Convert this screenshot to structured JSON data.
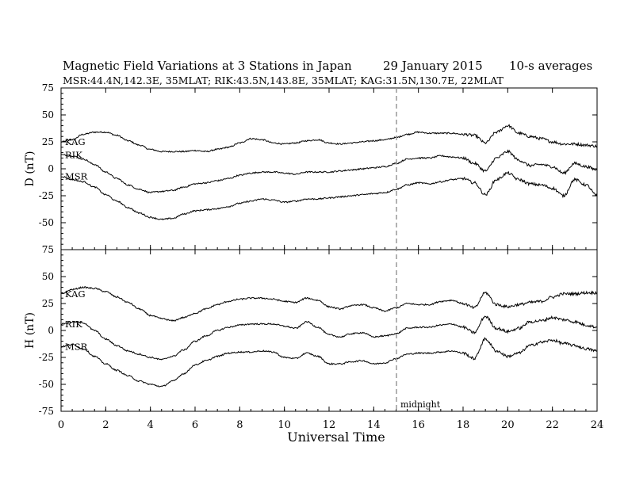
{
  "header": {
    "title": "Magnetic Field Variations at 3 Stations in Japan",
    "date": "29 January 2015",
    "averaging": "10-s averages",
    "stations_line": "MSR:44.4N,142.3E, 35MLAT;  RIK:43.5N,143.8E, 35MLAT;  KAG:31.5N,130.7E, 22MLAT"
  },
  "x_axis": {
    "label": "Universal Time",
    "range": [
      0,
      24
    ],
    "ticks": [
      "0",
      "2",
      "4",
      "6",
      "8",
      "10",
      "12",
      "14",
      "16",
      "18",
      "20",
      "22",
      "24"
    ]
  },
  "midnight": {
    "label": "midnight",
    "x": 15
  },
  "chart_data": [
    {
      "type": "line",
      "panel": "D",
      "ylabel": "D (nT)",
      "ylim": [
        -75,
        75
      ],
      "y_ticks": [
        "75",
        "50",
        "25",
        "0",
        "-25",
        "-50",
        "-75"
      ],
      "x": [
        0,
        0.5,
        1,
        1.5,
        2,
        2.5,
        3,
        3.5,
        4,
        4.5,
        5,
        5.5,
        6,
        6.5,
        7,
        7.5,
        8,
        8.5,
        9,
        9.5,
        10,
        10.5,
        11,
        11.5,
        12,
        12.5,
        13,
        13.5,
        14,
        14.5,
        15,
        15.5,
        16,
        16.5,
        17,
        17.5,
        18,
        18.5,
        19,
        19.5,
        20,
        20.5,
        21,
        21.5,
        22,
        22.5,
        23,
        23.5,
        24
      ],
      "series": [
        {
          "name": "KAG",
          "values": [
            25,
            27,
            32,
            34,
            34,
            31,
            26,
            22,
            18,
            16,
            16,
            16,
            17,
            16,
            18,
            20,
            24,
            28,
            27,
            24,
            23,
            24,
            26,
            27,
            24,
            23,
            24,
            25,
            26,
            27,
            29,
            32,
            34,
            33,
            33,
            33,
            32,
            31,
            24,
            34,
            40,
            33,
            30,
            28,
            25,
            23,
            23,
            22,
            21
          ]
        },
        {
          "name": "RIK",
          "values": [
            13,
            12,
            9,
            4,
            -3,
            -9,
            -15,
            -19,
            -22,
            -21,
            -20,
            -17,
            -14,
            -13,
            -11,
            -9,
            -6,
            -4,
            -3,
            -3,
            -4,
            -5,
            -3,
            -3,
            -3,
            -2,
            -1,
            0,
            1,
            2,
            5,
            9,
            10,
            10,
            12,
            11,
            10,
            5,
            -2,
            10,
            16,
            8,
            3,
            4,
            2,
            -4,
            5,
            2,
            -1
          ]
        },
        {
          "name": "MSR",
          "values": [
            -7,
            -10,
            -12,
            -17,
            -24,
            -30,
            -36,
            -41,
            -45,
            -47,
            -46,
            -42,
            -39,
            -38,
            -37,
            -35,
            -32,
            -30,
            -28,
            -29,
            -31,
            -30,
            -28,
            -28,
            -27,
            -26,
            -25,
            -24,
            -23,
            -22,
            -19,
            -15,
            -13,
            -14,
            -12,
            -10,
            -9,
            -13,
            -24,
            -10,
            -4,
            -10,
            -14,
            -15,
            -18,
            -25,
            -10,
            -15,
            -25
          ]
        }
      ]
    },
    {
      "type": "line",
      "panel": "H",
      "ylabel": "H (nT)",
      "ylim": [
        -75,
        75
      ],
      "y_ticks": [
        "75",
        "50",
        "25",
        "0",
        "-25",
        "-50",
        "-75"
      ],
      "x": [
        0,
        0.5,
        1,
        1.5,
        2,
        2.5,
        3,
        3.5,
        4,
        4.5,
        5,
        5.5,
        6,
        6.5,
        7,
        7.5,
        8,
        8.5,
        9,
        9.5,
        10,
        10.5,
        11,
        11.5,
        12,
        12.5,
        13,
        13.5,
        14,
        14.5,
        15,
        15.5,
        16,
        16.5,
        17,
        17.5,
        18,
        18.5,
        19,
        19.5,
        20,
        20.5,
        21,
        21.5,
        22,
        22.5,
        23,
        23.5,
        24
      ],
      "series": [
        {
          "name": "KAG",
          "values": [
            34,
            38,
            40,
            39,
            36,
            31,
            26,
            20,
            14,
            11,
            9,
            12,
            16,
            20,
            24,
            27,
            29,
            30,
            30,
            29,
            27,
            26,
            30,
            28,
            22,
            20,
            23,
            24,
            21,
            18,
            21,
            25,
            24,
            24,
            27,
            28,
            25,
            21,
            35,
            24,
            22,
            24,
            26,
            27,
            31,
            34,
            34,
            35,
            35
          ]
        },
        {
          "name": "RIK",
          "values": [
            6,
            8,
            7,
            0,
            -8,
            -14,
            -19,
            -22,
            -25,
            -27,
            -24,
            -18,
            -10,
            -5,
            0,
            3,
            5,
            6,
            6,
            6,
            4,
            2,
            8,
            3,
            -4,
            -6,
            -3,
            -2,
            -6,
            -5,
            -3,
            2,
            3,
            3,
            5,
            6,
            3,
            -2,
            13,
            2,
            -1,
            2,
            8,
            9,
            12,
            10,
            8,
            5,
            3
          ]
        },
        {
          "name": "MSR",
          "values": [
            -15,
            -13,
            -17,
            -24,
            -31,
            -37,
            -42,
            -47,
            -50,
            -52,
            -47,
            -40,
            -32,
            -28,
            -24,
            -21,
            -20,
            -20,
            -19,
            -20,
            -25,
            -26,
            -21,
            -24,
            -31,
            -31,
            -29,
            -28,
            -31,
            -30,
            -26,
            -22,
            -21,
            -21,
            -20,
            -19,
            -21,
            -26,
            -8,
            -19,
            -24,
            -21,
            -14,
            -11,
            -9,
            -12,
            -14,
            -17,
            -19
          ]
        }
      ]
    }
  ]
}
